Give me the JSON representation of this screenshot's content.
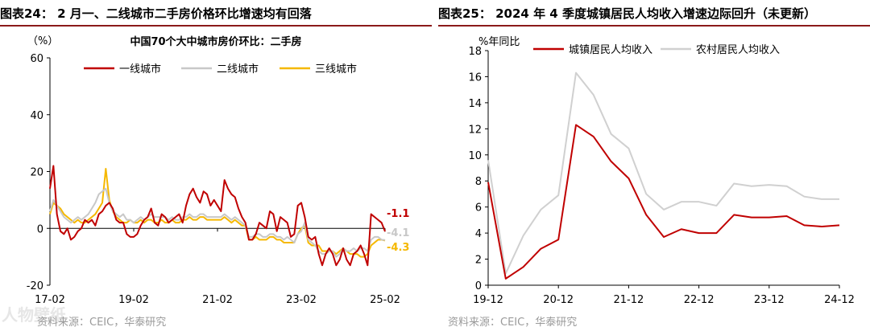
{
  "left_panel": {
    "title": "图表24：  2 月一、二线城市二手房价格环比增速均有回落",
    "source": "资料来源：CEIC，华泰研究",
    "watermark": "人物壁纸"
  },
  "right_panel": {
    "title": "图表25：  2024 年 4 季度城镇居民人均收入增速边际回升（未更新）",
    "source": "资料来源：CEIC，华泰研究"
  },
  "colors": {
    "red": "#c00000",
    "grey": "#c8c8c8",
    "yellow": "#f5b800",
    "title_rule": "#8b1a1a"
  },
  "chart_data": [
    {
      "type": "line",
      "title": "中国70个大中城市房价环比：二手房",
      "yunit": "（%）",
      "ylim": [
        -20,
        60
      ],
      "yticks": [
        -20,
        0,
        20,
        40,
        60
      ],
      "x_tick_labels": [
        "17-02",
        "19-02",
        "21-02",
        "23-02",
        "25-02"
      ],
      "x_tick_index": [
        0,
        24,
        48,
        72,
        96
      ],
      "legend_position": "top",
      "grid": false,
      "series": [
        {
          "name": "一线城市",
          "color": "#c00000",
          "end_label": "-1.1",
          "values": [
            14,
            22,
            5,
            -1,
            -2,
            0,
            -4,
            -3,
            -1,
            0,
            3,
            2,
            3,
            1,
            5,
            6,
            8,
            9,
            7,
            3,
            2,
            2,
            -2,
            -3,
            -3,
            -2,
            1,
            3,
            4,
            7,
            2,
            1,
            5,
            4,
            2,
            3,
            4,
            5,
            2,
            8,
            12,
            14,
            11,
            9,
            13,
            12,
            8,
            10,
            8,
            6,
            17,
            14,
            12,
            11,
            7,
            4,
            2,
            -4,
            -4,
            -2,
            2,
            1,
            0,
            6,
            5,
            -1,
            4,
            3,
            2,
            -3,
            -2,
            8,
            9,
            4,
            -3,
            -4,
            -3,
            -9,
            -13,
            -9,
            -7,
            -9,
            -13,
            -11,
            -7,
            -11,
            -13,
            -9,
            -8,
            -6,
            -9,
            -13,
            5,
            4,
            3,
            2,
            -1.1
          ],
          "stroke_width": 2
        },
        {
          "name": "二线城市",
          "color": "#c8c8c8",
          "end_label": "-4.1",
          "values": [
            6,
            10,
            8,
            6,
            4,
            3,
            2,
            3,
            4,
            3,
            4,
            5,
            7,
            9,
            12,
            13,
            14,
            9,
            6,
            5,
            4,
            5,
            3,
            3,
            2,
            3,
            4,
            3,
            4,
            5,
            4,
            4,
            4,
            4,
            3,
            4,
            3,
            3,
            4,
            4,
            5,
            4,
            4,
            5,
            5,
            4,
            4,
            4,
            4,
            4,
            5,
            4,
            3,
            4,
            3,
            2,
            1,
            -3,
            -3,
            -2,
            -2,
            -3,
            -3,
            -2,
            -2,
            -3,
            -3,
            -4,
            -3,
            -4,
            -5,
            -2,
            -1,
            2,
            -4,
            -5,
            -6,
            -8,
            -9,
            -9,
            -8,
            -8,
            -10,
            -9,
            -7,
            -8,
            -8,
            -7,
            -8,
            -7,
            -7,
            -8,
            -4,
            -3,
            -3,
            -4,
            -4.1
          ],
          "stroke_width": 2
        },
        {
          "name": "三线城市",
          "color": "#f5b800",
          "end_label": "-4.3",
          "values": [
            5,
            9,
            8,
            7,
            5,
            4,
            3,
            2,
            3,
            2,
            2,
            3,
            4,
            5,
            7,
            9,
            21,
            10,
            6,
            4,
            3,
            2,
            2,
            3,
            2,
            2,
            3,
            2,
            3,
            3,
            2,
            2,
            3,
            2,
            2,
            3,
            2,
            2,
            3,
            3,
            4,
            3,
            3,
            4,
            4,
            3,
            3,
            3,
            3,
            3,
            4,
            3,
            2,
            3,
            2,
            1,
            1,
            -4,
            -4,
            -3,
            -4,
            -4,
            -4,
            -3,
            -3,
            -4,
            -4,
            -5,
            -5,
            -5,
            -5,
            -2,
            0,
            1,
            -5,
            -6,
            -6,
            -6,
            -8,
            -8,
            -8,
            -8,
            -9,
            -8,
            -7,
            -8,
            -9,
            -9,
            -9,
            -10,
            -10,
            -9,
            -6,
            -5,
            -4,
            -4,
            -4.3
          ],
          "stroke_width": 2
        }
      ]
    },
    {
      "type": "line",
      "title": "",
      "yunit": "%年同比",
      "ylim": [
        0,
        18
      ],
      "yticks": [
        0,
        2,
        4,
        6,
        8,
        10,
        12,
        14,
        16,
        18
      ],
      "x_tick_labels": [
        "19-12",
        "20-12",
        "21-12",
        "22-12",
        "23-12",
        "24-12"
      ],
      "x_tick_index": [
        0,
        4,
        8,
        12,
        16,
        20
      ],
      "legend_position": "top",
      "grid": false,
      "series": [
        {
          "name": "城镇居民人均收入",
          "color": "#c00000",
          "values": [
            7.9,
            0.5,
            1.4,
            2.8,
            3.5,
            12.3,
            11.4,
            9.5,
            8.2,
            5.4,
            3.7,
            4.3,
            4.0,
            4.0,
            5.4,
            5.2,
            5.2,
            5.3,
            4.6,
            4.5,
            4.6
          ],
          "stroke_width": 2
        },
        {
          "name": "农村居民人均收入",
          "color": "#d0d0d0",
          "values": [
            9.6,
            0.9,
            3.8,
            5.8,
            6.9,
            16.3,
            14.6,
            11.6,
            10.5,
            7.0,
            5.8,
            6.4,
            6.4,
            6.1,
            7.8,
            7.6,
            7.7,
            7.6,
            6.8,
            6.6,
            6.6
          ],
          "stroke_width": 2
        }
      ]
    }
  ]
}
